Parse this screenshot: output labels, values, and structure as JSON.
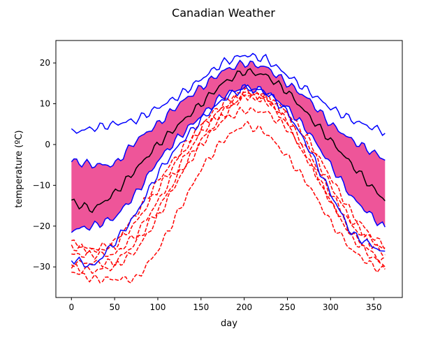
{
  "chart_data": {
    "type": "line",
    "title": "Canadian Weather",
    "xlabel": "day",
    "ylabel": "temperature (ºC)",
    "xlim": [
      -18,
      383
    ],
    "ylim": [
      -37.5,
      25.5
    ],
    "xticks": [
      0,
      50,
      100,
      150,
      200,
      250,
      300,
      350
    ],
    "yticks": [
      -30,
      -20,
      -10,
      0,
      10,
      20
    ],
    "grid": false,
    "x": [
      0,
      25,
      50,
      75,
      100,
      125,
      150,
      175,
      200,
      225,
      250,
      275,
      300,
      325,
      350,
      365
    ],
    "envelope": {
      "color": "#ee5599",
      "upper": [
        -4,
        -5,
        -5,
        1,
        5,
        10,
        14,
        18,
        20,
        19,
        15,
        11,
        5,
        1,
        -2,
        -4
      ],
      "lower": [
        -21,
        -20,
        -18,
        -12,
        -4,
        2,
        7,
        12,
        14,
        13,
        9,
        3,
        -5,
        -13,
        -18,
        -21
      ]
    },
    "median": {
      "color": "#000000",
      "values": [
        -14,
        -16,
        -12,
        -6,
        0,
        5,
        10,
        15,
        18,
        17,
        13,
        7,
        1,
        -5,
        -11,
        -14
      ]
    },
    "whiskers": {
      "color": "#0000ff",
      "upper": [
        3,
        4,
        5,
        6,
        9,
        12,
        16,
        20,
        22,
        21,
        17,
        13,
        9,
        6,
        4,
        3
      ],
      "lower": [
        -28,
        -30,
        -24,
        -17,
        -7,
        0,
        6,
        11,
        14,
        13,
        8,
        -1,
        -12,
        -22,
        -25,
        -27
      ]
    },
    "outliers": {
      "color": "#ff0000",
      "style": "dashed",
      "series": [
        [
          -24,
          -26,
          -24,
          -17,
          -9,
          -2,
          5,
          10,
          13,
          12,
          8,
          1,
          -8,
          -17,
          -23,
          -25
        ],
        [
          -25,
          -26,
          -25,
          -19,
          -11,
          -3,
          4,
          9,
          13,
          12,
          7,
          0,
          -10,
          -19,
          -24,
          -26
        ],
        [
          -27,
          -27,
          -27,
          -22,
          -14,
          -5,
          3,
          8,
          12,
          11,
          6,
          -2,
          -12,
          -20,
          -25,
          -27
        ],
        [
          -29,
          -29,
          -29,
          -24,
          -16,
          -7,
          1,
          7,
          12,
          11,
          5,
          -4,
          -14,
          -22,
          -27,
          -29
        ],
        [
          -30,
          -31,
          -30,
          -26,
          -18,
          -8,
          0,
          6,
          8.5,
          8,
          4,
          -4,
          -14,
          -23,
          -28,
          -30
        ],
        [
          -31,
          -33,
          -33,
          -33,
          -26,
          -16,
          -6,
          1,
          5,
          3,
          -3,
          -10,
          -19,
          -26,
          -30,
          -31
        ]
      ]
    }
  }
}
